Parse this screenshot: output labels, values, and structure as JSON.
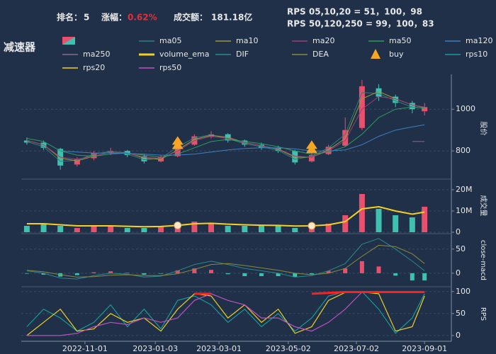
{
  "header": {
    "title": "减速器",
    "rank_label": "排名：",
    "rank": 5,
    "change_label": "涨幅：",
    "change": {
      "value": 0.62,
      "label": "0.62%"
    },
    "change_color": "#e0303a",
    "turnover_label": "成交额：",
    "turnover": {
      "value": 181.18,
      "label": "181.18亿"
    },
    "rps_line1": "RPS 05,10,20 = 51，100，98",
    "rps_line2": "RPS 50,120,250 = 99，100，83"
  },
  "chart_data": {
    "x": [
      "2022-09-10",
      "2022-09-25",
      "2022-10-10",
      "2022-10-25",
      "2022-11-09",
      "2022-11-24",
      "2022-12-09",
      "2022-12-24",
      "2023-01-08",
      "2023-01-23",
      "2023-02-07",
      "2023-02-22",
      "2023-03-09",
      "2023-03-24",
      "2023-04-08",
      "2023-04-23",
      "2023-05-08",
      "2023-05-23",
      "2023-06-07",
      "2023-06-22",
      "2023-07-07",
      "2023-07-22",
      "2023-08-06",
      "2023-08-21",
      "2023-09-01"
    ],
    "xlim": [
      "2022-09-05",
      "2023-09-25"
    ],
    "xticks": [
      "2022-11-01",
      "2023-01-03",
      "2023-03-01",
      "2023-05-02",
      "2023-07-02",
      "2023-09-01"
    ],
    "panels": [
      {
        "type": "candlestick",
        "ylabel": "股价",
        "ylim": [
          665,
          1150
        ],
        "yticks": [
          800,
          1000
        ],
        "grid": true,
        "up_color": "#e8506e",
        "down_color": "#3fc1b0",
        "open": [
          850,
          840,
          810,
          735,
          765,
          790,
          800,
          775,
          750,
          775,
          830,
          870,
          880,
          850,
          830,
          815,
          800,
          750,
          785,
          825,
          910,
          1100,
          1060,
          1030,
          990
        ],
        "high": [
          865,
          850,
          815,
          770,
          800,
          815,
          805,
          785,
          780,
          840,
          880,
          895,
          885,
          855,
          840,
          825,
          805,
          790,
          830,
          960,
          1140,
          1120,
          1070,
          1040,
          1030
        ],
        "low": [
          830,
          805,
          710,
          725,
          755,
          780,
          770,
          740,
          745,
          770,
          825,
          860,
          840,
          820,
          805,
          790,
          735,
          745,
          780,
          820,
          900,
          1040,
          1010,
          980,
          970
        ],
        "close": [
          840,
          815,
          730,
          760,
          790,
          800,
          780,
          750,
          770,
          830,
          870,
          880,
          850,
          830,
          815,
          800,
          745,
          780,
          820,
          900,
          1110,
          1060,
          1030,
          1000,
          1010
        ],
        "series": [
          {
            "name": "ma05",
            "color": "#2f7f78",
            "values": [
              845,
              820,
              750,
              755,
              785,
              798,
              785,
              758,
              765,
              820,
              862,
              878,
              858,
              835,
              820,
              803,
              760,
              775,
              815,
              880,
              1080,
              1075,
              1040,
              1010,
              1005
            ]
          },
          {
            "name": "ma10",
            "color": "#9a9a40",
            "values": [
              850,
              830,
              765,
              752,
              775,
              795,
              792,
              765,
              760,
              805,
              855,
              875,
              865,
              840,
              825,
              808,
              770,
              770,
              805,
              860,
              1050,
              1085,
              1050,
              1020,
              1008
            ]
          },
          {
            "name": "ma20",
            "color": "#9a4078",
            "values": [
              850,
              830,
              770,
              760,
              775,
              795,
              790,
              770,
              765,
              800,
              850,
              870,
              860,
              840,
              825,
              810,
              775,
              770,
              800,
              850,
              1000,
              1060,
              1050,
              1020,
              1010
            ]
          },
          {
            "name": "ma50",
            "color": "#2e9b5f",
            "values": [
              860,
              845,
              800,
              780,
              775,
              785,
              790,
              780,
              770,
              785,
              815,
              845,
              855,
              845,
              835,
              820,
              800,
              785,
              795,
              820,
              880,
              960,
              1000,
              1010,
              1005
            ]
          },
          {
            "name": "ma120",
            "color": "#3f7fc0",
            "values": [
              null,
              null,
              800,
              795,
              790,
              790,
              788,
              785,
              780,
              780,
              785,
              795,
              805,
              812,
              815,
              815,
              810,
              800,
              800,
              805,
              830,
              870,
              900,
              915,
              925
            ]
          },
          {
            "name": "ma250",
            "color": "#8a6a8a",
            "values": [
              null,
              null,
              null,
              null,
              null,
              null,
              null,
              null,
              null,
              null,
              null,
              null,
              null,
              null,
              null,
              null,
              null,
              null,
              null,
              null,
              null,
              null,
              null,
              845,
              845
            ]
          }
        ],
        "buy": {
          "name": "buy",
          "color": "#f5a623",
          "values": [
            null,
            null,
            null,
            null,
            null,
            null,
            null,
            null,
            null,
            830,
            null,
            null,
            null,
            null,
            null,
            null,
            null,
            810,
            null,
            null,
            null,
            null,
            null,
            null,
            null
          ]
        }
      },
      {
        "type": "bar",
        "ylabel": "成交量",
        "ylim": [
          0,
          25000000
        ],
        "grid": true,
        "yticks": [
          0,
          {
            "value": 10000000,
            "label": "10M"
          },
          {
            "value": 20000000,
            "label": "20M"
          }
        ],
        "values": [
          3000000,
          4000000,
          3000000,
          2000000,
          3000000,
          3000000,
          2000000,
          2000000,
          3000000,
          4000000,
          5000000,
          4000000,
          3000000,
          3000000,
          3000000,
          3000000,
          2000000,
          3000000,
          4000000,
          8000000,
          18000000,
          11000000,
          8000000,
          7000000,
          12000000
        ],
        "series": [
          {
            "name": "volume_ema",
            "color": "#f5d020",
            "values": [
              4000000,
              4000000,
              3500000,
              3000000,
              3000000,
              3000000,
              2800000,
              2600000,
              2700000,
              3200000,
              4000000,
              4200000,
              3800000,
              3500000,
              3300000,
              3200000,
              2900000,
              3000000,
              3500000,
              5000000,
              11000000,
              12000000,
              10000000,
              8500000,
              9500000
            ]
          }
        ]
      },
      {
        "type": "macd",
        "ylabel": "close-macd",
        "ylim": [
          -28,
          82
        ],
        "yticks": [
          0,
          50
        ],
        "grid": true,
        "bars": [
          -1,
          -3,
          -7,
          -4,
          2,
          4,
          1,
          -3,
          -1,
          6,
          10,
          7,
          -2,
          -6,
          -6,
          -6,
          -8,
          -2,
          5,
          10,
          25,
          14,
          -5,
          -15,
          -15
        ],
        "series": [
          {
            "name": "DIF",
            "color": "#2a8a8a",
            "values": [
              5,
              0,
              -10,
              -12,
              -5,
              0,
              -2,
              -8,
              -6,
              5,
              18,
              25,
              18,
              10,
              5,
              0,
              -8,
              -5,
              5,
              20,
              60,
              72,
              50,
              25,
              5
            ]
          },
          {
            "name": "DEA",
            "color": "#8a8a40",
            "values": [
              6,
              3,
              -3,
              -8,
              -7,
              -4,
              -3,
              -5,
              -5,
              -1,
              8,
              18,
              20,
              16,
              11,
              6,
              0,
              -3,
              0,
              10,
              35,
              58,
              55,
              40,
              20
            ]
          }
        ]
      },
      {
        "type": "line",
        "ylabel": "RPS",
        "ylim": [
          -13,
          111
        ],
        "yticks": [
          0,
          50,
          100
        ],
        "grid": true,
        "series": [
          {
            "name": "rps10",
            "color": "#1a9a9a",
            "values": [
              20,
              60,
              40,
              10,
              30,
              70,
              20,
              60,
              15,
              80,
              90,
              70,
              30,
              60,
              20,
              50,
              10,
              40,
              90,
              100,
              100,
              60,
              5,
              40,
              95
            ]
          },
          {
            "name": "rps20",
            "color": "#f0d020",
            "values": [
              0,
              30,
              60,
              10,
              15,
              50,
              30,
              40,
              10,
              60,
              95,
              90,
              40,
              70,
              30,
              60,
              5,
              20,
              80,
              98,
              99,
              95,
              10,
              20,
              90
            ]
          },
          {
            "name": "rps50",
            "color": "#c050c0",
            "values": [
              0,
              0,
              0,
              5,
              20,
              30,
              25,
              40,
              30,
              40,
              80,
              95,
              80,
              70,
              40,
              40,
              20,
              10,
              30,
              60,
              99,
              99,
              99,
              99,
              98
            ]
          }
        ],
        "highlight": {
          "color": "#ff2020",
          "values": [
            null,
            null,
            null,
            null,
            null,
            null,
            null,
            null,
            null,
            null,
            95,
            95,
            null,
            null,
            null,
            null,
            null,
            95,
            97,
            99,
            99,
            99,
            99,
            99,
            99
          ]
        }
      }
    ]
  }
}
